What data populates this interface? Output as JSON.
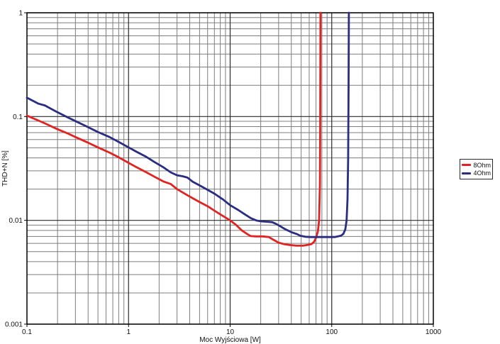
{
  "chart_data": {
    "type": "line",
    "title": "",
    "xlabel": "Moc Wyjściowa [W]",
    "ylabel": "THD+N [%]",
    "x_scale": "log",
    "y_scale": "log",
    "xlim": [
      0.1,
      1000
    ],
    "ylim": [
      0.001,
      1
    ],
    "x_ticks": [
      0.1,
      1,
      10,
      100,
      1000
    ],
    "x_tick_labels": [
      "0.1",
      "1",
      "10",
      "100",
      "1000"
    ],
    "y_ticks": [
      1,
      0.1,
      0.01,
      0.001
    ],
    "y_tick_labels": [
      "1",
      "0.1",
      "0.01",
      "0.001"
    ],
    "grid": "major and minor log grid, on",
    "legend_position": "outside-right",
    "series": [
      {
        "name": "8Ohm",
        "color": "#e02424",
        "points": [
          [
            0.1,
            0.102
          ],
          [
            0.13,
            0.0915
          ],
          [
            0.15,
            0.086
          ],
          [
            0.2,
            0.0755
          ],
          [
            0.25,
            0.069
          ],
          [
            0.3,
            0.0635
          ],
          [
            0.4,
            0.056
          ],
          [
            0.5,
            0.0505
          ],
          [
            0.65,
            0.045
          ],
          [
            0.8,
            0.0405
          ],
          [
            1.0,
            0.0358
          ],
          [
            1.2,
            0.0325
          ],
          [
            1.5,
            0.029
          ],
          [
            1.8,
            0.0263
          ],
          [
            2.2,
            0.0237
          ],
          [
            2.6,
            0.0224
          ],
          [
            3.0,
            0.02
          ],
          [
            3.6,
            0.018
          ],
          [
            4.3,
            0.0163
          ],
          [
            5.0,
            0.015
          ],
          [
            6.0,
            0.0137
          ],
          [
            7.0,
            0.0124
          ],
          [
            8.5,
            0.011
          ],
          [
            10,
            0.01
          ],
          [
            11.5,
            0.009
          ],
          [
            13,
            0.008
          ],
          [
            15,
            0.0073
          ],
          [
            16,
            0.00705
          ],
          [
            18,
            0.007
          ],
          [
            21,
            0.007
          ],
          [
            24,
            0.0069
          ],
          [
            26,
            0.0066
          ],
          [
            30,
            0.0061
          ],
          [
            34,
            0.0059
          ],
          [
            38,
            0.0058
          ],
          [
            45,
            0.0057
          ],
          [
            52,
            0.0057
          ],
          [
            58,
            0.0058
          ],
          [
            63,
            0.0059
          ],
          [
            67,
            0.0062
          ],
          [
            70,
            0.0068
          ],
          [
            73,
            0.0078
          ],
          [
            75,
            0.01
          ],
          [
            76.5,
            0.022
          ],
          [
            77,
            0.08
          ],
          [
            77.5,
            1.0
          ]
        ]
      },
      {
        "name": "4Ohm",
        "color": "#2a2d80",
        "points": [
          [
            0.1,
            0.152
          ],
          [
            0.13,
            0.133
          ],
          [
            0.15,
            0.128
          ],
          [
            0.2,
            0.11
          ],
          [
            0.25,
            0.0985
          ],
          [
            0.3,
            0.0905
          ],
          [
            0.4,
            0.079
          ],
          [
            0.5,
            0.071
          ],
          [
            0.65,
            0.0635
          ],
          [
            0.8,
            0.057
          ],
          [
            1.0,
            0.0505
          ],
          [
            1.2,
            0.0458
          ],
          [
            1.5,
            0.0408
          ],
          [
            1.8,
            0.0365
          ],
          [
            2.2,
            0.0325
          ],
          [
            2.6,
            0.029
          ],
          [
            3.0,
            0.0272
          ],
          [
            3.4,
            0.0266
          ],
          [
            3.8,
            0.0258
          ],
          [
            4.3,
            0.0235
          ],
          [
            5.0,
            0.0217
          ],
          [
            6.0,
            0.0197
          ],
          [
            7.0,
            0.0181
          ],
          [
            8.5,
            0.0159
          ],
          [
            10,
            0.014
          ],
          [
            12,
            0.0126
          ],
          [
            14,
            0.0114
          ],
          [
            16,
            0.0105
          ],
          [
            18,
            0.01
          ],
          [
            20,
            0.0098
          ],
          [
            23,
            0.0097
          ],
          [
            26,
            0.0096
          ],
          [
            28,
            0.0093
          ],
          [
            31,
            0.0088
          ],
          [
            35,
            0.0082
          ],
          [
            40,
            0.0077
          ],
          [
            45,
            0.0074
          ],
          [
            49,
            0.0071
          ],
          [
            55,
            0.00695
          ],
          [
            62,
            0.0069
          ],
          [
            70,
            0.0069
          ],
          [
            80,
            0.0069
          ],
          [
            90,
            0.0069
          ],
          [
            100,
            0.0069
          ],
          [
            107,
            0.0069
          ],
          [
            115,
            0.007
          ],
          [
            123,
            0.0071
          ],
          [
            130,
            0.0074
          ],
          [
            136,
            0.0082
          ],
          [
            140,
            0.01
          ],
          [
            143,
            0.016
          ],
          [
            145,
            0.04
          ],
          [
            146.5,
            0.2
          ],
          [
            147.5,
            1.0
          ]
        ]
      }
    ]
  },
  "legend": {
    "items": [
      {
        "label": "8Ohm",
        "color": "#e02424"
      },
      {
        "label": "4Ohm",
        "color": "#2a2d80"
      }
    ]
  },
  "colors": {
    "background": "#ffffff",
    "grid_minor": "#7d7d7d",
    "grid_major": "#2a2a2a",
    "frame": "#000000",
    "text": "#111111"
  }
}
